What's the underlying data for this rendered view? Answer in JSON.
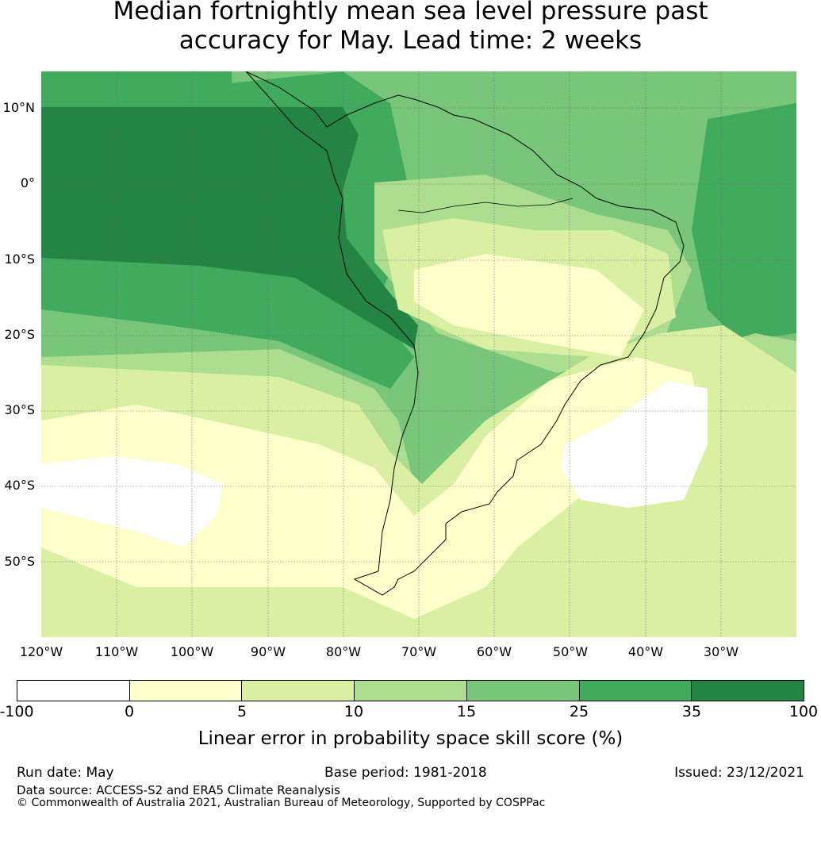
{
  "title_line1": "Median fortnightly mean sea level pressure past",
  "title_line2": "accuracy for May. Lead time: 2 weeks",
  "map": {
    "lat_labels": [
      "10°N",
      "0°",
      "10°S",
      "20°S",
      "30°S",
      "40°S",
      "50°S"
    ],
    "lon_labels": [
      "120°W",
      "110°W",
      "100°W",
      "90°W",
      "80°W",
      "70°W",
      "60°W",
      "50°W",
      "40°W",
      "30°W"
    ]
  },
  "colorbar": {
    "ticks": [
      "-100",
      "0",
      "5",
      "10",
      "15",
      "25",
      "35",
      "100"
    ],
    "colors": [
      "#ffffff",
      "#ffffcc",
      "#d9f0a3",
      "#addd8e",
      "#78c679",
      "#41ab5d",
      "#238443"
    ],
    "label": "Linear error in probability space skill score (%)"
  },
  "footer": {
    "run_date": "Run date: May",
    "base_period": "Base period: 1981-2018",
    "issued": "Issued: 23/12/2021",
    "data_source": "Data source: ACCESS-S2 and ERA5 Climate Reanalysis",
    "copyright": "© Commonwealth of Australia 2021, Australian Bureau of Meteorology, Supported by COSPPac"
  }
}
